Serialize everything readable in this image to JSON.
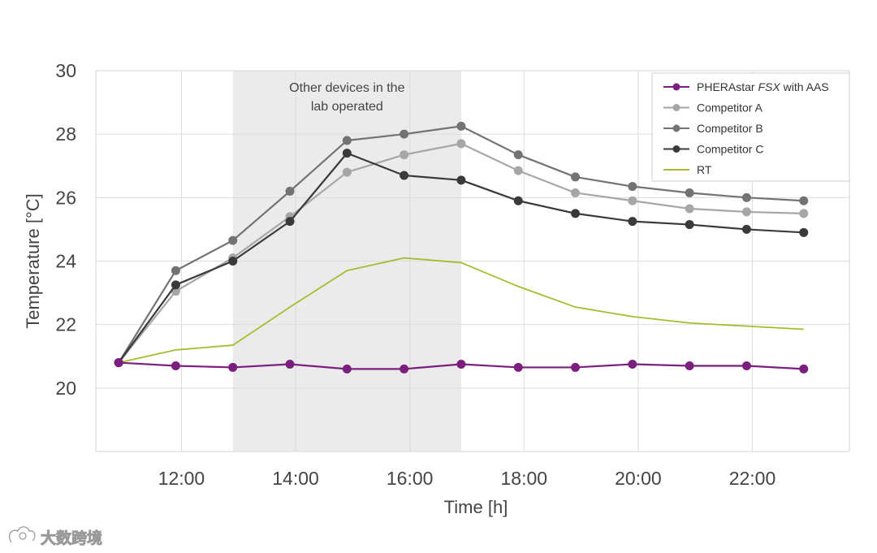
{
  "chart_data": {
    "type": "line",
    "ylabel": "Temperature [°C]",
    "xlabel": "Time [h]",
    "ylim": [
      18,
      30
    ],
    "xlim": [
      10.5,
      23.7
    ],
    "yticks": [
      20,
      22,
      24,
      26,
      28,
      30
    ],
    "xticks": [
      {
        "value": 12,
        "label": "12:00"
      },
      {
        "value": 14,
        "label": "14:00"
      },
      {
        "value": 16,
        "label": "16:00"
      },
      {
        "value": 18,
        "label": "18:00"
      },
      {
        "value": 20,
        "label": "20:00"
      },
      {
        "value": 22,
        "label": "22:00"
      }
    ],
    "grid": "on",
    "legend_position": "top-right",
    "shaded_region": {
      "x_start": 12.9,
      "x_end": 16.9,
      "label_lines": [
        "Other devices in the",
        "lab operated"
      ]
    },
    "series": [
      {
        "name_parts": [
          "PHERAstar ",
          "FSX",
          " with AAS"
        ],
        "color": "#7b1f7e",
        "markers": true,
        "x": [
          10.9,
          11.9,
          12.9,
          13.9,
          14.9,
          15.9,
          16.9,
          17.9,
          18.9,
          19.9,
          20.9,
          21.9,
          22.9
        ],
        "y": [
          20.8,
          20.7,
          20.65,
          20.75,
          20.6,
          20.6,
          20.75,
          20.65,
          20.65,
          20.75,
          20.7,
          20.7,
          20.6
        ]
      },
      {
        "name": "Competitor A",
        "color": "#a6a6a6",
        "markers": true,
        "x": [
          10.9,
          11.9,
          12.9,
          13.9,
          14.9,
          15.9,
          16.9,
          17.9,
          18.9,
          19.9,
          20.9,
          21.9,
          22.9
        ],
        "y": [
          20.8,
          23.05,
          24.1,
          25.4,
          26.8,
          27.35,
          27.7,
          26.85,
          26.15,
          25.9,
          25.65,
          25.55,
          25.5
        ]
      },
      {
        "name": "Competitor B",
        "color": "#737373",
        "markers": true,
        "x": [
          10.9,
          11.9,
          12.9,
          13.9,
          14.9,
          15.9,
          16.9,
          17.9,
          18.9,
          19.9,
          20.9,
          21.9,
          22.9
        ],
        "y": [
          20.8,
          23.7,
          24.65,
          26.2,
          27.8,
          28.0,
          28.25,
          27.35,
          26.65,
          26.35,
          26.15,
          26.0,
          25.9
        ]
      },
      {
        "name": "Competitor C",
        "color": "#3a3a3a",
        "markers": true,
        "x": [
          10.9,
          11.9,
          12.9,
          13.9,
          14.9,
          15.9,
          16.9,
          17.9,
          18.9,
          19.9,
          20.9,
          21.9,
          22.9
        ],
        "y": [
          20.8,
          23.25,
          24.0,
          25.25,
          27.4,
          26.7,
          26.55,
          25.9,
          25.5,
          25.25,
          25.15,
          25.0,
          24.9
        ]
      },
      {
        "name": "RT",
        "color": "#a3bd31",
        "markers": false,
        "x": [
          10.9,
          11.9,
          12.9,
          13.9,
          14.9,
          15.9,
          16.9,
          17.9,
          18.9,
          19.9,
          20.9,
          21.9,
          22.9
        ],
        "y": [
          20.8,
          21.2,
          21.35,
          22.55,
          23.7,
          24.1,
          23.95,
          23.2,
          22.55,
          22.25,
          22.05,
          21.95,
          21.85
        ]
      }
    ]
  },
  "watermark": {
    "text": "大数跨境",
    "logo_icon": "cloud-swirl-icon"
  }
}
